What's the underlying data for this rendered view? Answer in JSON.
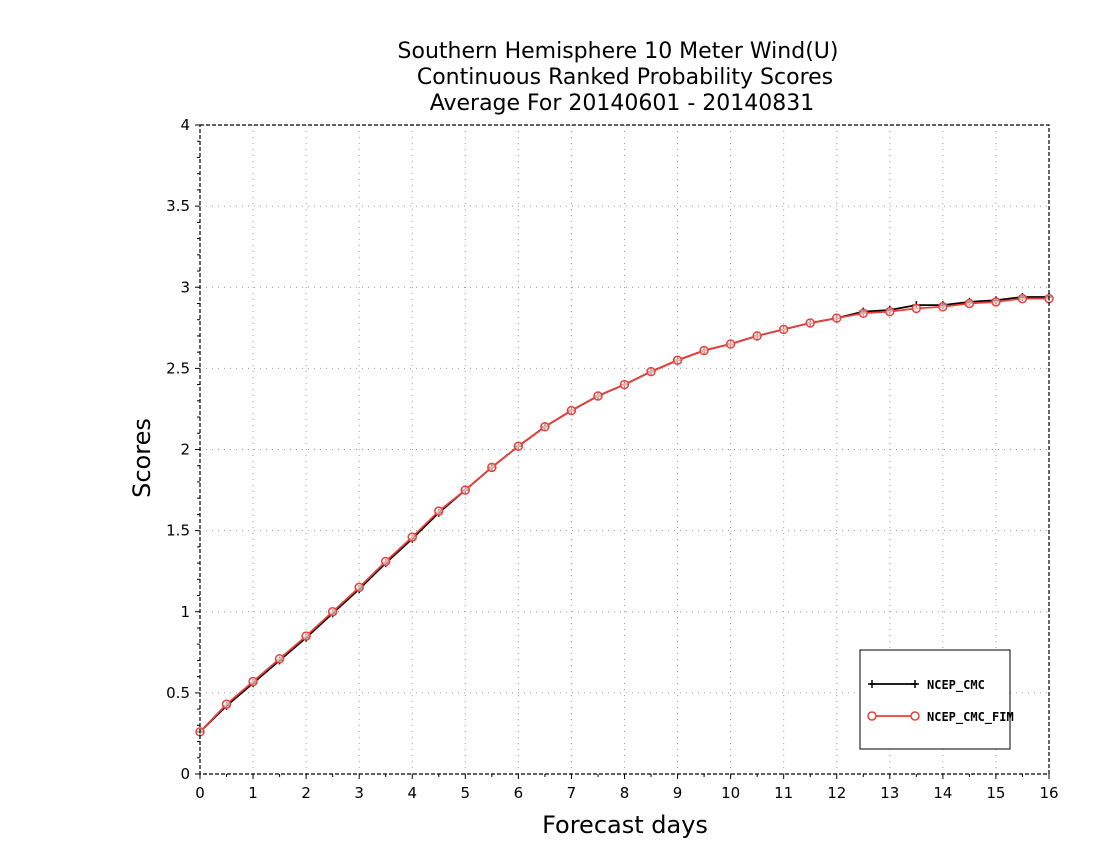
{
  "chart_data": {
    "type": "line",
    "title": [
      "Southern Hemisphere 10 Meter Wind(U)",
      "Continuous Ranked Probability Scores",
      "Average For 20140601 - 20140831"
    ],
    "xlabel": "Forecast days",
    "ylabel": "Scores",
    "xlim": [
      0,
      16
    ],
    "ylim": [
      0,
      4
    ],
    "xticks": [
      "0",
      "1",
      "2",
      "3",
      "4",
      "5",
      "6",
      "7",
      "8",
      "9",
      "10",
      "11",
      "12",
      "13",
      "14",
      "15",
      "16"
    ],
    "yticks": [
      "0",
      "0.5",
      "1",
      "1.5",
      "2",
      "2.5",
      "3",
      "3.5",
      "4"
    ],
    "grid": true,
    "legend_position": "bottom-right",
    "x": [
      0,
      0.5,
      1,
      1.5,
      2,
      2.5,
      3,
      3.5,
      4,
      4.5,
      5,
      5.5,
      6,
      6.5,
      7,
      7.5,
      8,
      8.5,
      9,
      9.5,
      10,
      10.5,
      11,
      11.5,
      12,
      12.5,
      13,
      13.5,
      14,
      14.5,
      15,
      15.5,
      16
    ],
    "series": [
      {
        "name": "NCEP_CMC",
        "color": "#000000",
        "marker": "plus",
        "values": [
          0.26,
          0.42,
          0.56,
          0.7,
          0.84,
          0.99,
          1.14,
          1.3,
          1.45,
          1.61,
          1.75,
          1.89,
          2.02,
          2.14,
          2.24,
          2.33,
          2.4,
          2.48,
          2.55,
          2.61,
          2.65,
          2.7,
          2.74,
          2.78,
          2.81,
          2.85,
          2.86,
          2.89,
          2.89,
          2.91,
          2.92,
          2.94,
          2.94
        ]
      },
      {
        "name": "NCEP_CMC_FIM",
        "color": "#e8413c",
        "marker": "circle",
        "values": [
          0.26,
          0.43,
          0.57,
          0.71,
          0.85,
          1.0,
          1.15,
          1.31,
          1.46,
          1.62,
          1.75,
          1.89,
          2.02,
          2.14,
          2.24,
          2.33,
          2.4,
          2.48,
          2.55,
          2.61,
          2.65,
          2.7,
          2.74,
          2.78,
          2.81,
          2.84,
          2.85,
          2.87,
          2.88,
          2.9,
          2.91,
          2.93,
          2.93
        ]
      }
    ]
  }
}
